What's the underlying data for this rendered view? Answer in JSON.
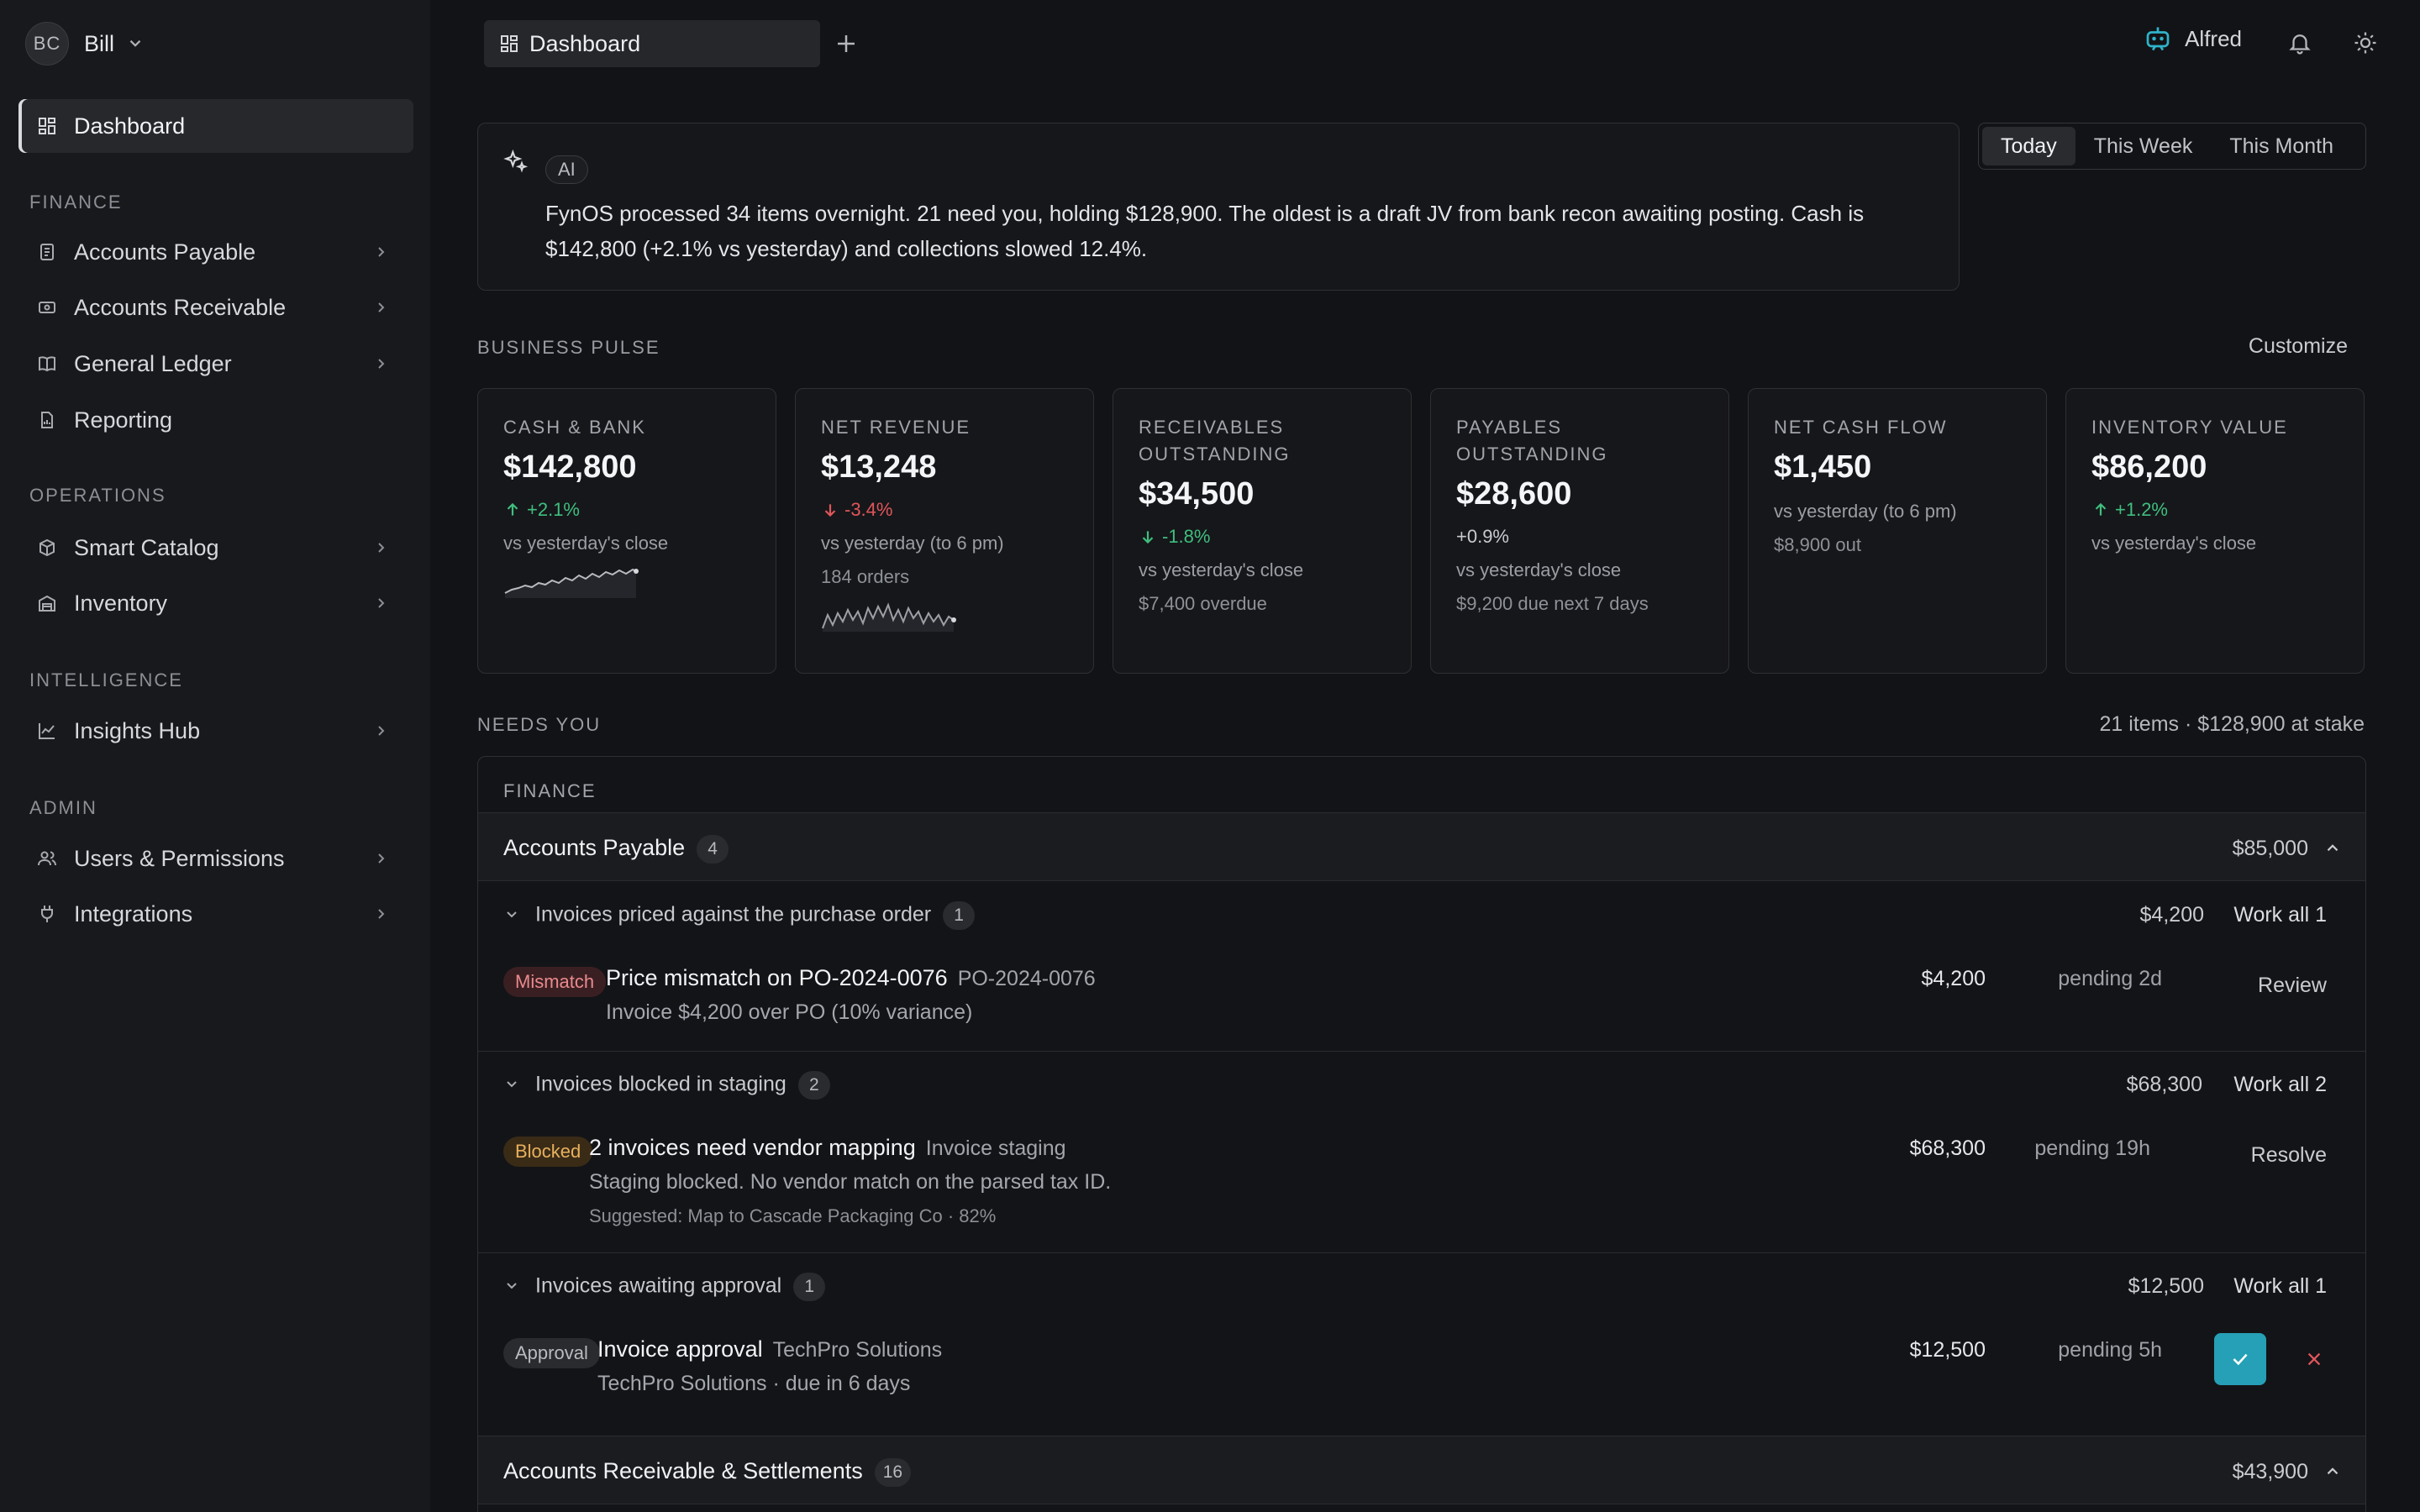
{
  "user": {
    "initials": "BC",
    "name": "Bill"
  },
  "sidebar": {
    "dashboard": "Dashboard",
    "sections": {
      "finance": "FINANCE",
      "operations": "OPERATIONS",
      "intelligence": "INTELLIGENCE",
      "admin": "ADMIN"
    },
    "items": {
      "accounts_payable": "Accounts Payable",
      "accounts_receivable": "Accounts Receivable",
      "general_ledger": "General Ledger",
      "reporting": "Reporting",
      "smart_catalog": "Smart Catalog",
      "inventory": "Inventory",
      "insights_hub": "Insights Hub",
      "users_permissions": "Users & Permissions",
      "integrations": "Integrations"
    }
  },
  "topbar": {
    "tab_label": "Dashboard",
    "assistant": "Alfred"
  },
  "ai": {
    "badge": "AI",
    "line1": "FynOS processed 34 items overnight. 21 need you, holding $128,900. The oldest is a draft JV from bank recon awaiting posting. Cash is",
    "line2": "$142,800 (+2.1% vs yesterday) and collections slowed 12.4%."
  },
  "range": {
    "today": "Today",
    "week": "This Week",
    "month": "This Month",
    "selected": "Today"
  },
  "pulse": {
    "header": "BUSINESS PULSE",
    "customize": "Customize",
    "cards": [
      {
        "label": "CASH & BANK",
        "value": "$142,800",
        "change": "+2.1%",
        "dir": "up",
        "note": "vs yesterday's close"
      },
      {
        "label": "NET REVENUE",
        "value": "$13,248",
        "change": "-3.4%",
        "dir": "down",
        "note": "vs yesterday (to 6 pm)",
        "note2": "184 orders"
      },
      {
        "label": "RECEIVABLES OUTSTANDING",
        "value": "$34,500",
        "change": "-1.8%",
        "dir": "down-good",
        "note": "vs yesterday's close",
        "note2": "$7,400 overdue"
      },
      {
        "label": "PAYABLES OUTSTANDING",
        "value": "$28,600",
        "change": "+0.9%",
        "dir": "flat",
        "note": "vs yesterday's close",
        "note2": "$9,200 due next 7 days"
      },
      {
        "label": "NET CASH FLOW",
        "value": "$1,450",
        "note": "vs yesterday (to 6 pm)",
        "note2": "$8,900 out"
      },
      {
        "label": "INVENTORY VALUE",
        "value": "$86,200",
        "change": "+1.2%",
        "dir": "up",
        "note": "vs yesterday's close"
      }
    ]
  },
  "needs": {
    "header": "NEEDS YOU",
    "stat": "21 items · $128,900 at stake",
    "finance_label": "FINANCE",
    "ap": {
      "name": "Accounts Payable",
      "count": "4",
      "amount": "$85,000"
    },
    "subs": [
      {
        "name": "Invoices priced against the purchase order",
        "count": "1",
        "amount": "$4,200",
        "work": "Work all 1"
      },
      {
        "name": "Invoices blocked in staging",
        "count": "2",
        "amount": "$68,300",
        "work": "Work all 2"
      },
      {
        "name": "Invoices awaiting approval",
        "count": "1",
        "amount": "$12,500",
        "work": "Work all 1"
      }
    ],
    "items": [
      {
        "tag": "Mismatch",
        "title": "Price mismatch on PO-2024-0076",
        "ref": "PO-2024-0076",
        "desc": "Invoice $4,200 over PO (10% variance)",
        "amount": "$4,200",
        "pending": "pending 2d",
        "action": "Review"
      },
      {
        "tag": "Blocked",
        "title": "2 invoices need vendor mapping",
        "ref": "Invoice staging",
        "desc": "Staging blocked. No vendor match on the parsed tax ID.",
        "suggestion": "Suggested: Map to Cascade Packaging Co · 82%",
        "amount": "$68,300",
        "pending": "pending 19h",
        "action": "Resolve"
      },
      {
        "tag": "Approval",
        "title": "Invoice approval",
        "ref": "TechPro Solutions",
        "desc": "TechPro Solutions · due in 6 days",
        "amount": "$12,500",
        "pending": "pending 5h"
      }
    ],
    "ar": {
      "name": "Accounts Receivable & Settlements",
      "count": "16",
      "amount": "$43,900"
    }
  },
  "colors": {
    "accent": "#25a0b6",
    "up": "#3fbf7f",
    "down": "#e0565b"
  }
}
